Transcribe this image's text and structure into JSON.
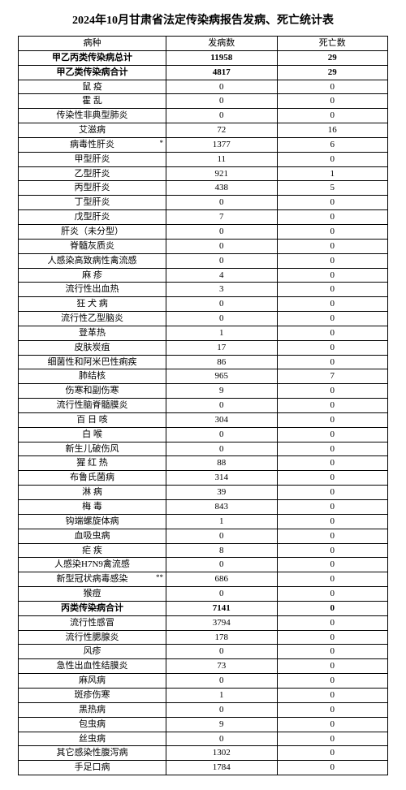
{
  "title": "2024年10月甘肃省法定传染病报告发病、死亡统计表",
  "columns": [
    "病种",
    "发病数",
    "死亡数"
  ],
  "col_widths_pct": [
    40,
    30,
    30
  ],
  "font_size_pt": 11,
  "header_font_size_pt": 11,
  "title_font_size_pt": 14,
  "border_color": "#000000",
  "background_color": "#ffffff",
  "page_background": "#d8d8d8",
  "text_color": "#000000",
  "rows": [
    {
      "name": "甲乙丙类传染病总计",
      "cases": "11958",
      "deaths": "29",
      "bold": true
    },
    {
      "name": "甲乙类传染病合计",
      "cases": "4817",
      "deaths": "29",
      "bold": true
    },
    {
      "name": "鼠 疫",
      "cases": "0",
      "deaths": "0"
    },
    {
      "name": "霍 乱",
      "cases": "0",
      "deaths": "0"
    },
    {
      "name": "传染性非典型肺炎",
      "cases": "0",
      "deaths": "0"
    },
    {
      "name": "艾滋病",
      "cases": "72",
      "deaths": "16"
    },
    {
      "name": "病毒性肝炎",
      "cases": "1377",
      "deaths": "6",
      "star": "*"
    },
    {
      "name": "甲型肝炎",
      "cases": "11",
      "deaths": "0"
    },
    {
      "name": "乙型肝炎",
      "cases": "921",
      "deaths": "1"
    },
    {
      "name": "丙型肝炎",
      "cases": "438",
      "deaths": "5"
    },
    {
      "name": "丁型肝炎",
      "cases": "0",
      "deaths": "0"
    },
    {
      "name": "戊型肝炎",
      "cases": "7",
      "deaths": "0"
    },
    {
      "name": "肝炎（未分型）",
      "cases": "0",
      "deaths": "0"
    },
    {
      "name": "脊髓灰质炎",
      "cases": "0",
      "deaths": "0"
    },
    {
      "name": "人感染高致病性禽流感",
      "cases": "0",
      "deaths": "0"
    },
    {
      "name": "麻 疹",
      "cases": "4",
      "deaths": "0"
    },
    {
      "name": "流行性出血热",
      "cases": "3",
      "deaths": "0"
    },
    {
      "name": "狂 犬 病",
      "cases": "0",
      "deaths": "0"
    },
    {
      "name": "流行性乙型脑炎",
      "cases": "0",
      "deaths": "0"
    },
    {
      "name": "登革热",
      "cases": "1",
      "deaths": "0"
    },
    {
      "name": "皮肤炭疽",
      "cases": "17",
      "deaths": "0"
    },
    {
      "name": "细菌性和阿米巴性痢疾",
      "cases": "86",
      "deaths": "0"
    },
    {
      "name": "肺结核",
      "cases": "965",
      "deaths": "7"
    },
    {
      "name": "伤寒和副伤寒",
      "cases": "9",
      "deaths": "0"
    },
    {
      "name": "流行性脑脊髓膜炎",
      "cases": "0",
      "deaths": "0"
    },
    {
      "name": "百 日 咳",
      "cases": "304",
      "deaths": "0"
    },
    {
      "name": "白 喉",
      "cases": "0",
      "deaths": "0"
    },
    {
      "name": "新生儿破伤风",
      "cases": "0",
      "deaths": "0"
    },
    {
      "name": "猩 红 热",
      "cases": "88",
      "deaths": "0"
    },
    {
      "name": "布鲁氏菌病",
      "cases": "314",
      "deaths": "0"
    },
    {
      "name": "淋 病",
      "cases": "39",
      "deaths": "0"
    },
    {
      "name": "梅 毒",
      "cases": "843",
      "deaths": "0"
    },
    {
      "name": "钩端螺旋体病",
      "cases": "1",
      "deaths": "0"
    },
    {
      "name": "血吸虫病",
      "cases": "0",
      "deaths": "0"
    },
    {
      "name": "疟 疾",
      "cases": "8",
      "deaths": "0"
    },
    {
      "name": "人感染H7N9禽流感",
      "cases": "0",
      "deaths": "0"
    },
    {
      "name": "新型冠状病毒感染",
      "cases": "686",
      "deaths": "0",
      "star": "**"
    },
    {
      "name": "猴痘",
      "cases": "0",
      "deaths": "0"
    },
    {
      "name": "丙类传染病合计",
      "cases": "7141",
      "deaths": "0",
      "bold": true
    },
    {
      "name": "流行性感冒",
      "cases": "3794",
      "deaths": "0"
    },
    {
      "name": "流行性腮腺炎",
      "cases": "178",
      "deaths": "0"
    },
    {
      "name": "风疹",
      "cases": "0",
      "deaths": "0"
    },
    {
      "name": "急性出血性结膜炎",
      "cases": "73",
      "deaths": "0"
    },
    {
      "name": "麻风病",
      "cases": "0",
      "deaths": "0"
    },
    {
      "name": "斑疹伤寒",
      "cases": "1",
      "deaths": "0"
    },
    {
      "name": "黑热病",
      "cases": "0",
      "deaths": "0"
    },
    {
      "name": "包虫病",
      "cases": "9",
      "deaths": "0"
    },
    {
      "name": "丝虫病",
      "cases": "0",
      "deaths": "0"
    },
    {
      "name": "其它感染性腹泻病",
      "cases": "1302",
      "deaths": "0"
    },
    {
      "name": "手足口病",
      "cases": "1784",
      "deaths": "0"
    }
  ]
}
